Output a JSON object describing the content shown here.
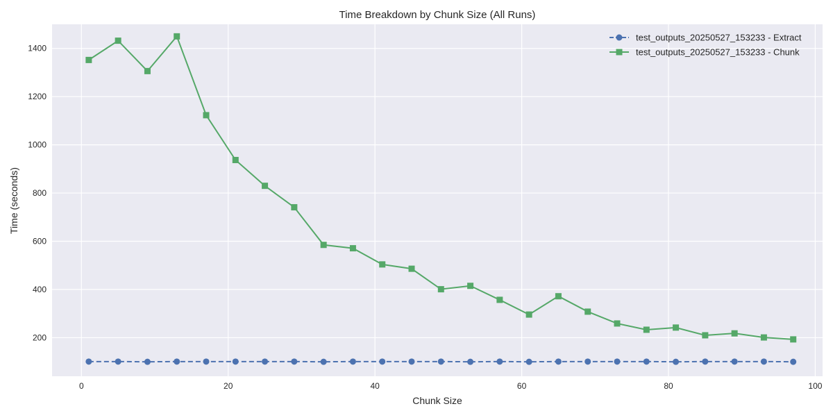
{
  "chart_data": {
    "type": "line",
    "title": "Time Breakdown by Chunk Size (All Runs)",
    "xlabel": "Chunk Size",
    "ylabel": "Time (seconds)",
    "xlim": [
      -4,
      101
    ],
    "ylim": [
      40,
      1500
    ],
    "xticks": [
      0,
      20,
      40,
      60,
      80,
      100
    ],
    "yticks": [
      200,
      400,
      600,
      800,
      1000,
      1200,
      1400
    ],
    "grid": true,
    "legend_position": "top-right",
    "x": [
      1,
      5,
      9,
      13,
      17,
      21,
      25,
      29,
      33,
      37,
      41,
      45,
      49,
      53,
      57,
      61,
      65,
      69,
      73,
      77,
      81,
      85,
      89,
      93,
      97
    ],
    "series": [
      {
        "name": "test_outputs_20250527_153233 - Extract",
        "color": "#4c72b0",
        "line_style": "dashed",
        "marker": "circle",
        "values": [
          101,
          101,
          100,
          101,
          101,
          101,
          101,
          101,
          100,
          101,
          101,
          101,
          101,
          100,
          101,
          100,
          101,
          101,
          101,
          101,
          100,
          101,
          101,
          101,
          100
        ]
      },
      {
        "name": "test_outputs_20250527_153233 - Chunk",
        "color": "#55a868",
        "line_style": "solid",
        "marker": "square",
        "values": [
          1352,
          1432,
          1306,
          1450,
          1123,
          937,
          830,
          741,
          585,
          571,
          504,
          486,
          401,
          415,
          357,
          296,
          372,
          308,
          259,
          233,
          242,
          210,
          218,
          201,
          193
        ]
      }
    ]
  }
}
